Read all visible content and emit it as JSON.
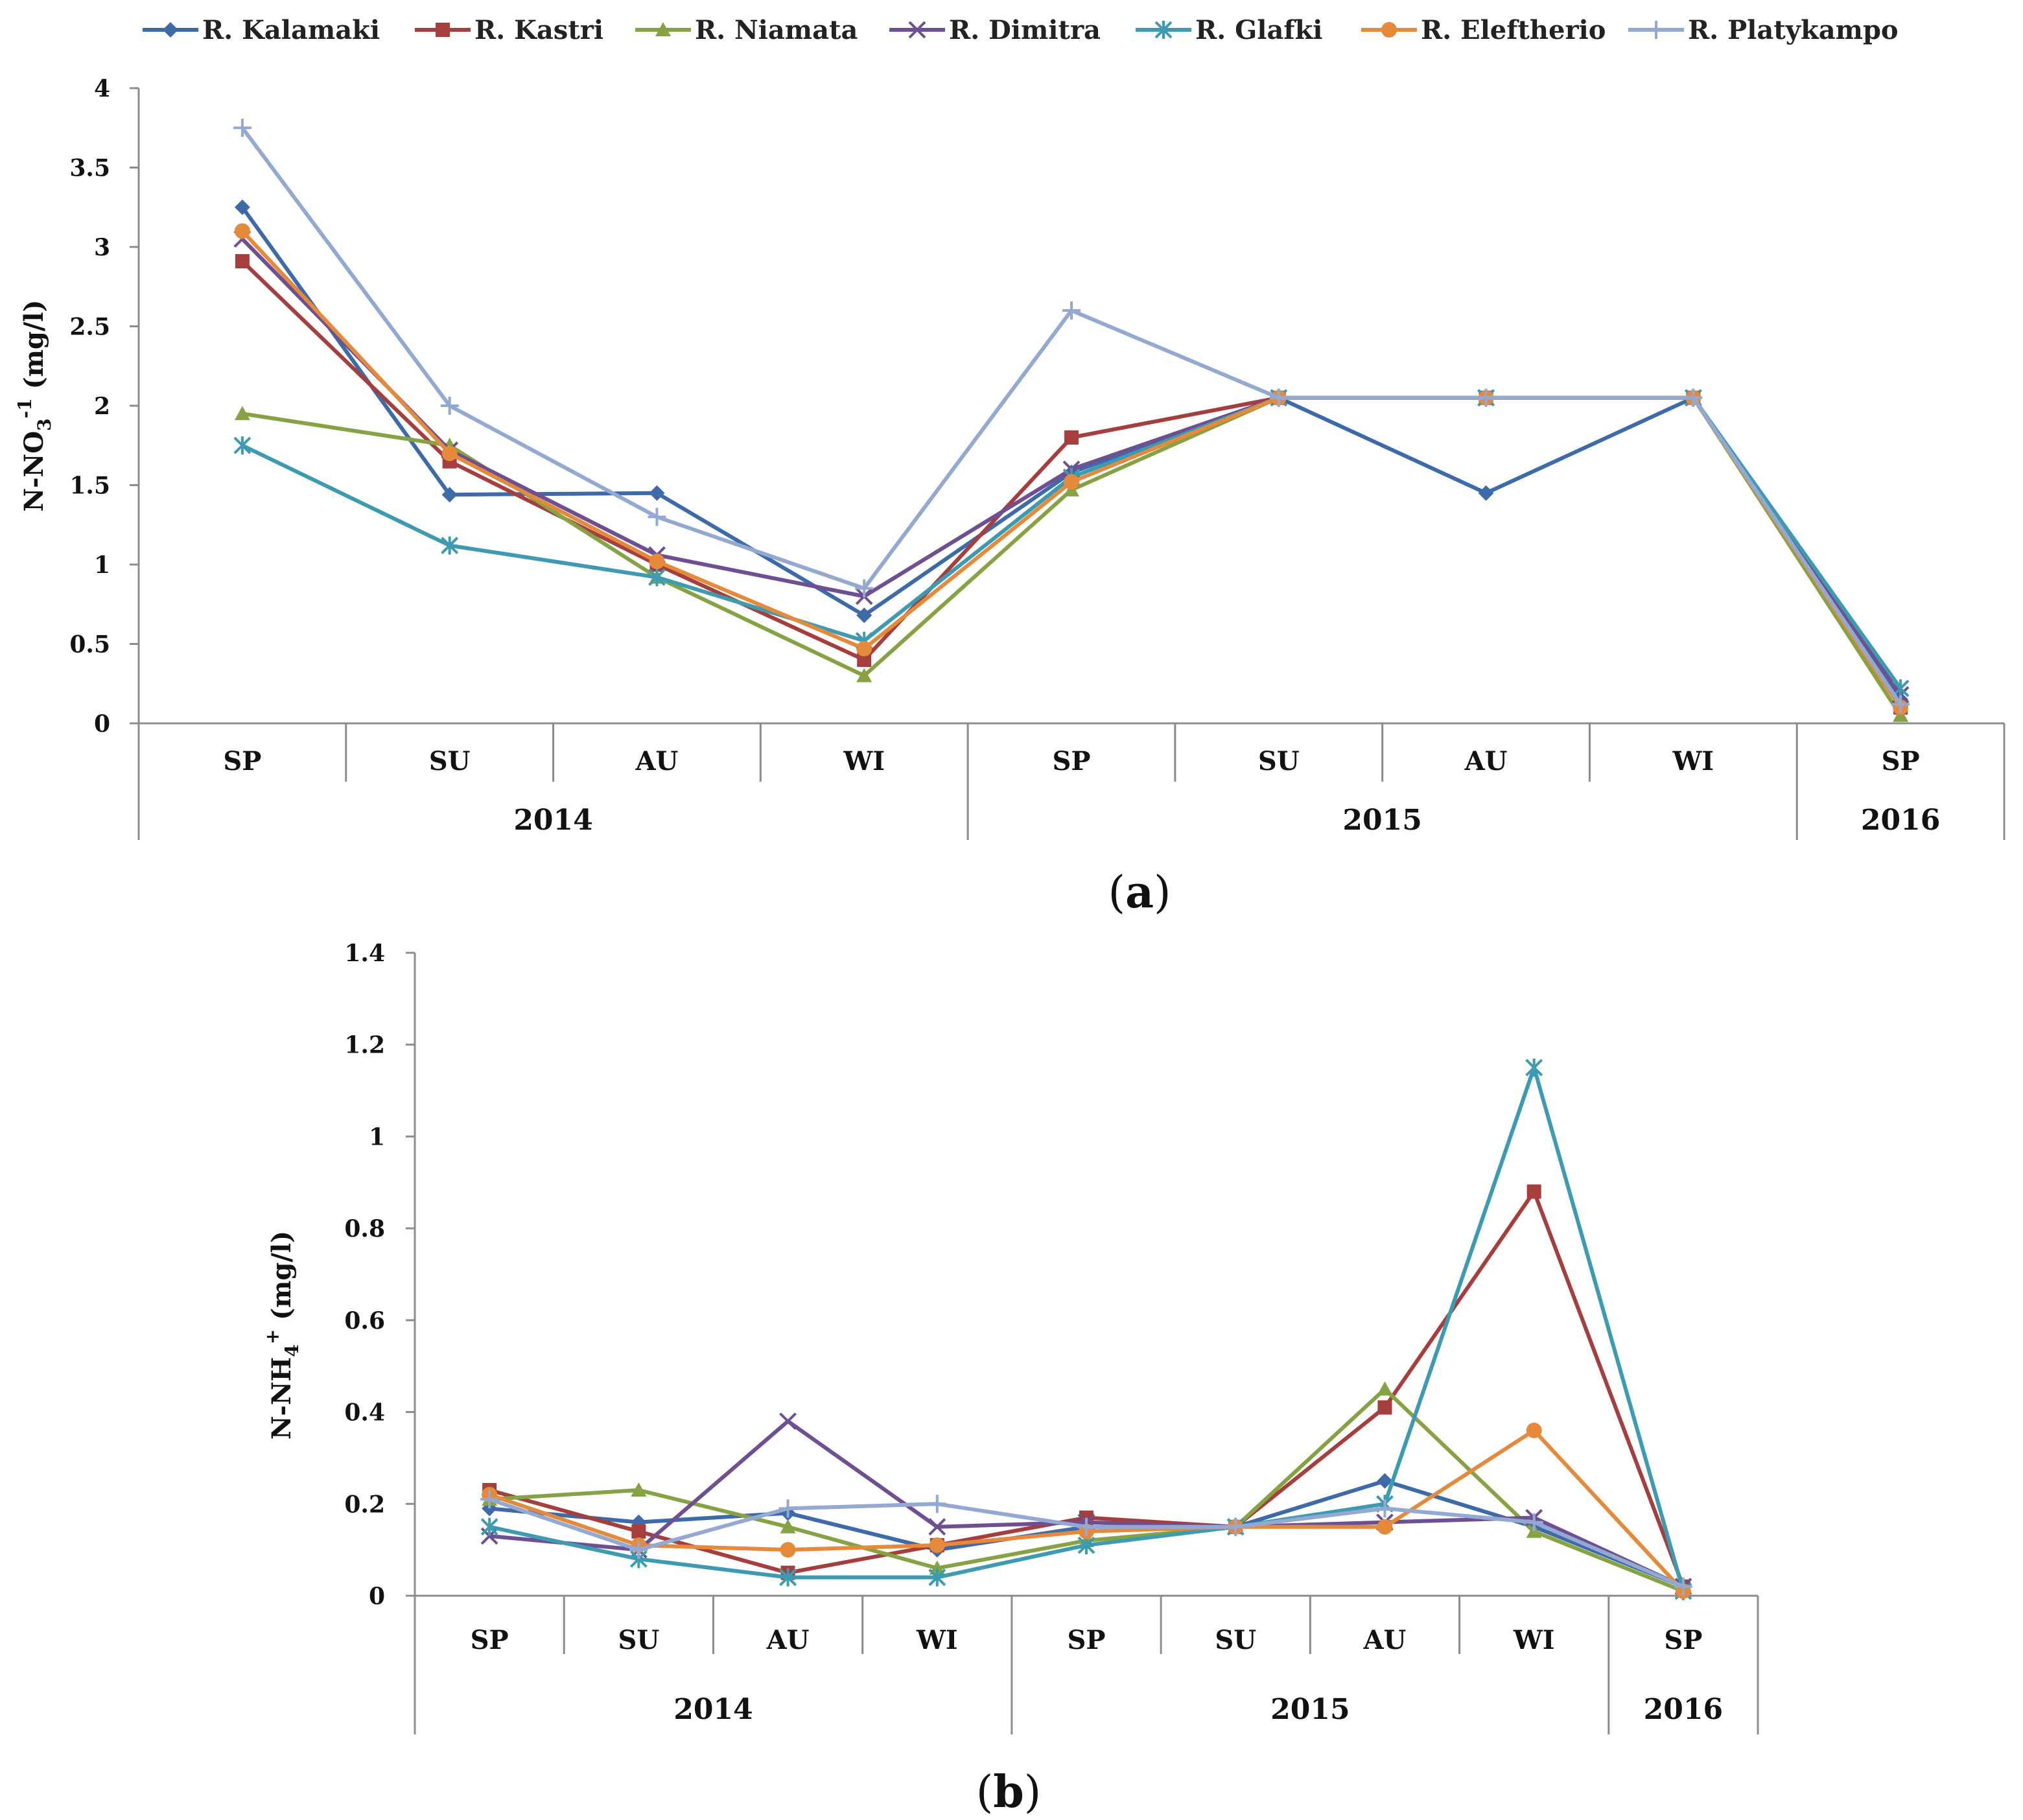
{
  "legend": [
    "R. Kalamaki",
    "R. Kastri",
    "R. Niamata",
    "R. Dimitra",
    "R. Glafki",
    "R. Eleftherio",
    "R. Platykampo"
  ],
  "series_style": [
    {
      "color": "#3d6aa8",
      "marker": "diamond"
    },
    {
      "color": "#a53e3c",
      "marker": "square"
    },
    {
      "color": "#86a343",
      "marker": "triangle"
    },
    {
      "color": "#6d4f92",
      "marker": "x"
    },
    {
      "color": "#3d9bb1",
      "marker": "star"
    },
    {
      "color": "#e58a3a",
      "marker": "circle"
    },
    {
      "color": "#93a9d2",
      "marker": "plus"
    }
  ],
  "chart_data": [
    {
      "type": "line",
      "panel_label": "a",
      "ylabel": "N-NO3-1 (mg/l)",
      "ylabel_main": "N-NO",
      "ylabel_sub": "3",
      "ylabel_sup": "-1",
      "ylabel_unit": " (mg/l)",
      "ylim": [
        0,
        4
      ],
      "yticks": [
        "0",
        "0.5",
        "1",
        "1.5",
        "2",
        "2.5",
        "3",
        "3.5",
        "4"
      ],
      "categories": [
        "SP",
        "SU",
        "AU",
        "WI",
        "SP",
        "SU",
        "AU",
        "WI",
        "SP"
      ],
      "years": [
        "2014",
        "2015",
        "2016"
      ],
      "series": [
        {
          "name": "R. Kalamaki",
          "values": [
            3.25,
            1.44,
            1.45,
            0.68,
            1.58,
            2.05,
            1.45,
            2.05,
            0.15
          ]
        },
        {
          "name": "R. Kastri",
          "values": [
            2.91,
            1.65,
            1.0,
            0.4,
            1.8,
            2.05,
            2.05,
            2.05,
            0.1
          ]
        },
        {
          "name": "R. Niamata",
          "values": [
            1.95,
            1.75,
            0.92,
            0.3,
            1.47,
            2.05,
            2.05,
            2.05,
            0.05
          ]
        },
        {
          "name": "R. Dimitra",
          "values": [
            3.05,
            1.72,
            1.06,
            0.8,
            1.6,
            2.05,
            2.05,
            2.05,
            0.18
          ]
        },
        {
          "name": "R. Glafki",
          "values": [
            1.75,
            1.12,
            0.92,
            0.52,
            1.55,
            2.05,
            2.05,
            2.05,
            0.22
          ]
        },
        {
          "name": "R. Eleftherio",
          "values": [
            3.1,
            1.7,
            1.02,
            0.47,
            1.52,
            2.05,
            2.05,
            2.05,
            0.1
          ]
        },
        {
          "name": "R. Platykampo",
          "values": [
            3.75,
            2.0,
            1.3,
            0.85,
            2.6,
            2.05,
            2.05,
            2.05,
            0.12
          ]
        }
      ]
    },
    {
      "type": "line",
      "panel_label": "b",
      "ylabel": "N-NH4+ (mg/l)",
      "ylabel_main": "N-NH",
      "ylabel_sub": "4",
      "ylabel_sup": "+",
      "ylabel_unit": " (mg/l)",
      "ylim": [
        0,
        1.4
      ],
      "yticks": [
        "0",
        "0.2",
        "0.4",
        "0.6",
        "0.8",
        "1",
        "1.2",
        "1.4"
      ],
      "categories": [
        "SP",
        "SU",
        "AU",
        "WI",
        "SP",
        "SU",
        "AU",
        "WI",
        "SP"
      ],
      "years": [
        "2014",
        "2015",
        "2016"
      ],
      "series": [
        {
          "name": "R. Kalamaki",
          "values": [
            0.19,
            0.16,
            0.18,
            0.1,
            0.15,
            0.15,
            0.25,
            0.15,
            0.02
          ]
        },
        {
          "name": "R. Kastri",
          "values": [
            0.23,
            0.14,
            0.05,
            0.11,
            0.17,
            0.15,
            0.41,
            0.88,
            0.02
          ]
        },
        {
          "name": "R. Niamata",
          "values": [
            0.21,
            0.23,
            0.15,
            0.06,
            0.12,
            0.15,
            0.45,
            0.14,
            0.01
          ]
        },
        {
          "name": "R. Dimitra",
          "values": [
            0.13,
            0.1,
            0.38,
            0.15,
            0.16,
            0.15,
            0.16,
            0.17,
            0.02
          ]
        },
        {
          "name": "R. Glafki",
          "values": [
            0.15,
            0.08,
            0.04,
            0.04,
            0.11,
            0.15,
            0.2,
            1.15,
            0.01
          ]
        },
        {
          "name": "R. Eleftherio",
          "values": [
            0.22,
            0.11,
            0.1,
            0.11,
            0.14,
            0.15,
            0.15,
            0.36,
            0.01
          ]
        },
        {
          "name": "R. Platykampo",
          "values": [
            0.21,
            0.1,
            0.19,
            0.2,
            0.15,
            0.15,
            0.19,
            0.16,
            0.02
          ]
        }
      ]
    }
  ]
}
